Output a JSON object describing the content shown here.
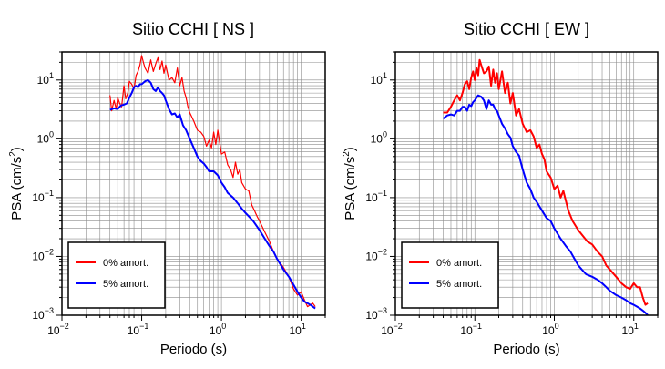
{
  "chart_data": [
    {
      "type": "line",
      "title": "Sitio CCHI [ NS ]",
      "xlabel": "Periodo (s)",
      "ylabel_main": "PSA (cm/s",
      "ylabel_sup": "2",
      "ylabel_end": ")",
      "xscale": "log",
      "yscale": "log",
      "xlim": [
        0.01,
        20
      ],
      "ylim": [
        0.001,
        30
      ],
      "grid": true,
      "legend_position": "bottom-left",
      "x_ticks": [
        {
          "value": 0.01,
          "base": "10",
          "exp": "−2"
        },
        {
          "value": 0.1,
          "base": "10",
          "exp": "−1"
        },
        {
          "value": 1,
          "base": "10",
          "exp": "0"
        },
        {
          "value": 10,
          "base": "10",
          "exp": "1"
        }
      ],
      "y_ticks": [
        {
          "value": 0.001,
          "base": "10",
          "exp": "−3"
        },
        {
          "value": 0.01,
          "base": "10",
          "exp": "−2"
        },
        {
          "value": 0.1,
          "base": "10",
          "exp": "−1"
        },
        {
          "value": 1,
          "base": "10",
          "exp": "0"
        },
        {
          "value": 10,
          "base": "10",
          "exp": "1"
        }
      ],
      "series": [
        {
          "name": "0% amort.",
          "color": "#ff0000",
          "x": [
            0.04,
            0.042,
            0.045,
            0.048,
            0.05,
            0.053,
            0.056,
            0.06,
            0.063,
            0.067,
            0.07,
            0.075,
            0.08,
            0.085,
            0.09,
            0.095,
            0.1,
            0.105,
            0.11,
            0.12,
            0.13,
            0.14,
            0.15,
            0.16,
            0.17,
            0.18,
            0.19,
            0.2,
            0.22,
            0.24,
            0.26,
            0.28,
            0.3,
            0.32,
            0.34,
            0.36,
            0.38,
            0.4,
            0.45,
            0.5,
            0.55,
            0.6,
            0.65,
            0.7,
            0.75,
            0.8,
            0.85,
            0.9,
            1.0,
            1.1,
            1.2,
            1.3,
            1.4,
            1.5,
            1.6,
            1.7,
            1.8,
            2.0,
            2.2,
            2.4,
            2.6,
            2.8,
            3.0,
            3.5,
            4,
            4.5,
            5,
            6,
            7,
            8,
            9,
            10,
            11,
            12,
            13,
            14,
            15
          ],
          "y": [
            5.5,
            3.0,
            4.5,
            3.2,
            5.0,
            4.0,
            3.5,
            8.0,
            4.8,
            6.0,
            9.5,
            8.5,
            7.0,
            12,
            14,
            18,
            26,
            20,
            16,
            13,
            22,
            14,
            19,
            24,
            15,
            21,
            13,
            18,
            10,
            11,
            9,
            16,
            8,
            11,
            6.5,
            5,
            3.5,
            2.8,
            2.0,
            1.4,
            1.3,
            1.1,
            0.75,
            0.95,
            0.7,
            1.3,
            0.8,
            1.4,
            0.55,
            0.6,
            0.36,
            0.3,
            0.22,
            0.4,
            0.25,
            0.3,
            0.18,
            0.14,
            0.13,
            0.075,
            0.06,
            0.048,
            0.04,
            0.026,
            0.018,
            0.012,
            0.009,
            0.0065,
            0.0045,
            0.0028,
            0.0022,
            0.0025,
            0.0018,
            0.0014,
            0.0015,
            0.0016,
            0.0014
          ]
        },
        {
          "name": "5% amort.",
          "color": "#0000ff",
          "x": [
            0.04,
            0.045,
            0.05,
            0.055,
            0.06,
            0.065,
            0.07,
            0.075,
            0.08,
            0.085,
            0.09,
            0.095,
            0.1,
            0.11,
            0.12,
            0.13,
            0.14,
            0.15,
            0.16,
            0.17,
            0.18,
            0.19,
            0.2,
            0.22,
            0.24,
            0.26,
            0.28,
            0.3,
            0.33,
            0.36,
            0.4,
            0.45,
            0.5,
            0.55,
            0.6,
            0.65,
            0.7,
            0.8,
            0.9,
            1.0,
            1.1,
            1.2,
            1.4,
            1.6,
            1.8,
            2.0,
            2.5,
            3,
            3.5,
            4,
            4.5,
            5,
            6,
            7,
            8,
            9,
            10,
            11,
            12,
            13,
            14,
            15
          ],
          "y": [
            3.1,
            3.3,
            3.2,
            3.7,
            3.8,
            4.0,
            5.0,
            6.0,
            7.5,
            8.0,
            7.5,
            8.5,
            8.5,
            9.5,
            10,
            9.0,
            7.0,
            6.5,
            7.5,
            6.5,
            6.0,
            5.5,
            4.5,
            3.2,
            2.6,
            2.7,
            2.3,
            2.6,
            1.7,
            1.4,
            1.0,
            0.7,
            0.5,
            0.42,
            0.38,
            0.33,
            0.28,
            0.28,
            0.24,
            0.18,
            0.15,
            0.12,
            0.1,
            0.08,
            0.065,
            0.055,
            0.04,
            0.028,
            0.02,
            0.015,
            0.012,
            0.009,
            0.006,
            0.0045,
            0.0033,
            0.0025,
            0.002,
            0.0017,
            0.0016,
            0.0015,
            0.0014,
            0.0013
          ]
        }
      ]
    },
    {
      "type": "line",
      "title": "Sitio CCHI [ EW ]",
      "xlabel": "Periodo (s)",
      "ylabel_main": "PSA (cm/s",
      "ylabel_sup": "2",
      "ylabel_end": ")",
      "xscale": "log",
      "yscale": "log",
      "xlim": [
        0.01,
        20
      ],
      "ylim": [
        0.001,
        30
      ],
      "grid": true,
      "legend_position": "bottom-left",
      "x_ticks": [
        {
          "value": 0.01,
          "base": "10",
          "exp": "−2"
        },
        {
          "value": 0.1,
          "base": "10",
          "exp": "−1"
        },
        {
          "value": 1,
          "base": "10",
          "exp": "0"
        },
        {
          "value": 10,
          "base": "10",
          "exp": "1"
        }
      ],
      "y_ticks": [
        {
          "value": 0.001,
          "base": "10",
          "exp": "−3"
        },
        {
          "value": 0.01,
          "base": "10",
          "exp": "−2"
        },
        {
          "value": 0.1,
          "base": "10",
          "exp": "−1"
        },
        {
          "value": 1,
          "base": "10",
          "exp": "0"
        },
        {
          "value": 10,
          "base": "10",
          "exp": "1"
        }
      ],
      "series": [
        {
          "name": "0% amort.",
          "color": "#ff0000",
          "x": [
            0.04,
            0.045,
            0.05,
            0.055,
            0.06,
            0.065,
            0.07,
            0.075,
            0.08,
            0.085,
            0.09,
            0.095,
            0.1,
            0.105,
            0.11,
            0.115,
            0.12,
            0.13,
            0.14,
            0.15,
            0.16,
            0.17,
            0.18,
            0.19,
            0.2,
            0.22,
            0.24,
            0.26,
            0.28,
            0.3,
            0.33,
            0.36,
            0.4,
            0.45,
            0.5,
            0.55,
            0.6,
            0.65,
            0.7,
            0.75,
            0.8,
            0.9,
            1.0,
            1.1,
            1.2,
            1.3,
            1.5,
            1.7,
            2.0,
            2.3,
            2.6,
            3.0,
            3.5,
            4,
            4.5,
            5,
            6,
            7,
            8,
            9,
            10,
            11,
            12,
            13,
            14,
            15
          ],
          "y": [
            2.8,
            2.8,
            3.5,
            4.5,
            5.5,
            4.5,
            6.0,
            8.5,
            9.5,
            7.0,
            11,
            14,
            10,
            16,
            12,
            22,
            18,
            13,
            14,
            17,
            8,
            15,
            9,
            13,
            7,
            14,
            6,
            9,
            4,
            6,
            2.5,
            3.2,
            1.8,
            1.3,
            1.4,
            1.1,
            0.7,
            0.8,
            0.55,
            0.45,
            0.28,
            0.22,
            0.14,
            0.16,
            0.1,
            0.13,
            0.06,
            0.04,
            0.028,
            0.022,
            0.018,
            0.016,
            0.012,
            0.01,
            0.007,
            0.006,
            0.0045,
            0.0035,
            0.003,
            0.0028,
            0.0035,
            0.003,
            0.003,
            0.002,
            0.0015,
            0.0016
          ]
        },
        {
          "name": "5% amort.",
          "color": "#0000ff",
          "x": [
            0.04,
            0.045,
            0.05,
            0.055,
            0.06,
            0.065,
            0.07,
            0.075,
            0.08,
            0.085,
            0.09,
            0.095,
            0.1,
            0.11,
            0.12,
            0.13,
            0.14,
            0.15,
            0.16,
            0.17,
            0.18,
            0.19,
            0.2,
            0.22,
            0.24,
            0.26,
            0.28,
            0.3,
            0.33,
            0.36,
            0.4,
            0.45,
            0.5,
            0.55,
            0.6,
            0.7,
            0.8,
            0.9,
            1.0,
            1.2,
            1.4,
            1.6,
            1.8,
            2.0,
            2.5,
            3,
            3.5,
            4,
            4.5,
            5,
            6,
            7,
            8,
            9,
            10,
            11,
            12,
            13,
            14,
            15
          ],
          "y": [
            2.2,
            2.5,
            2.6,
            2.5,
            3.0,
            3.0,
            3.5,
            3.5,
            3.0,
            3.8,
            3.6,
            4.2,
            4.5,
            5.5,
            5.2,
            4.5,
            3.2,
            4.5,
            3.8,
            3.8,
            3.2,
            3.0,
            2.5,
            1.8,
            1.5,
            1.2,
            1.05,
            0.75,
            0.6,
            0.52,
            0.3,
            0.18,
            0.14,
            0.1,
            0.085,
            0.06,
            0.045,
            0.04,
            0.03,
            0.02,
            0.015,
            0.012,
            0.009,
            0.007,
            0.005,
            0.0045,
            0.004,
            0.0035,
            0.003,
            0.0026,
            0.0022,
            0.002,
            0.0018,
            0.0016,
            0.0015,
            0.0014,
            0.0013,
            0.0012,
            0.0011,
            0.001
          ]
        }
      ]
    }
  ]
}
